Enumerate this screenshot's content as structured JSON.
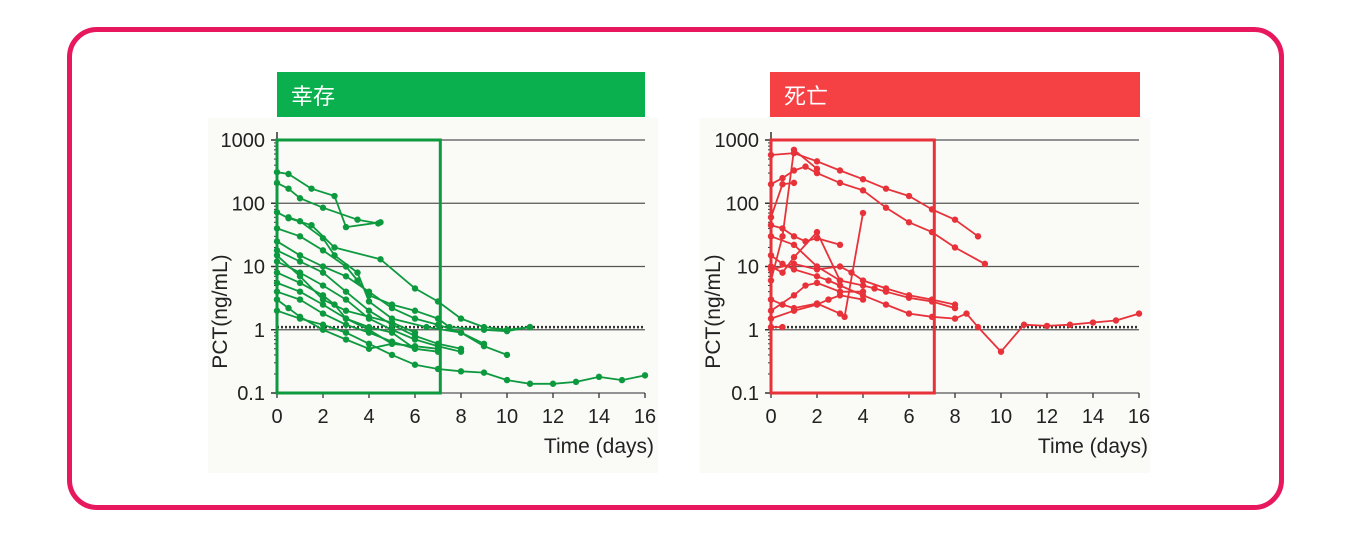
{
  "chart_data": [
    {
      "type": "line",
      "title": "幸存",
      "color": "#0d9a3f",
      "banner_color": "#0ab04d",
      "xlabel": "Time (days)",
      "ylabel": "PCT(ng/mL)",
      "xlim": [
        0,
        16
      ],
      "ylim": [
        0.1,
        1000
      ],
      "yscale": "log",
      "xticks": [
        0,
        2,
        4,
        6,
        8,
        10,
        12,
        14,
        16
      ],
      "yticks": [
        {
          "v": 0.1,
          "label": "0.1"
        },
        {
          "v": 1,
          "label": "1"
        },
        {
          "v": 10,
          "label": "10"
        },
        {
          "v": 100,
          "label": "100"
        },
        {
          "v": 1000,
          "label": "1000"
        }
      ],
      "reference_line": 1.1,
      "highlight_box": {
        "x": [
          0,
          7.1
        ],
        "y": [
          0.1,
          1000
        ]
      },
      "series": [
        {
          "x": [
            0,
            0.5,
            1.5,
            2.5,
            3,
            4.5
          ],
          "y": [
            310,
            290,
            170,
            130,
            42,
            50
          ]
        },
        {
          "x": [
            0,
            0.5,
            1,
            2,
            3.5,
            4.4
          ],
          "y": [
            210,
            170,
            120,
            85,
            55,
            48
          ]
        },
        {
          "x": [
            0,
            0.5,
            1.5,
            2.5,
            4.5,
            6,
            7,
            8,
            9,
            10,
            11
          ],
          "y": [
            72,
            58,
            45,
            20,
            13,
            4.5,
            2.8,
            1.5,
            1.1,
            1.0,
            1.1
          ]
        },
        {
          "x": [
            0.5,
            1,
            2,
            2.5,
            3.5,
            4,
            5,
            6.5,
            8,
            9
          ],
          "y": [
            60,
            52,
            28,
            15,
            8,
            2.8,
            1.5,
            1.1,
            0.9,
            0.6
          ]
        },
        {
          "x": [
            0,
            1,
            2,
            3,
            3.5,
            4,
            5,
            6,
            7,
            7.5,
            9,
            10,
            11
          ],
          "y": [
            40,
            30,
            18,
            10,
            6,
            3.5,
            2.5,
            2.0,
            1.5,
            1.1,
            1.0,
            0.95,
            1.1
          ]
        },
        {
          "x": [
            0,
            1,
            2,
            3,
            4,
            5,
            6,
            7,
            8,
            9,
            10
          ],
          "y": [
            25,
            15,
            10,
            7,
            4,
            2.2,
            1.5,
            1.2,
            0.9,
            0.55,
            0.4
          ]
        },
        {
          "x": [
            0,
            1,
            2,
            3,
            4,
            5,
            6,
            7,
            8
          ],
          "y": [
            18,
            12,
            8,
            4,
            2,
            1.2,
            0.8,
            0.6,
            0.5
          ]
        },
        {
          "x": [
            0,
            1,
            2,
            3,
            4,
            5,
            6,
            7,
            8
          ],
          "y": [
            12,
            8,
            5,
            3,
            1.5,
            1.0,
            0.7,
            0.55,
            0.45
          ]
        },
        {
          "x": [
            0,
            1,
            2,
            2.5,
            3,
            4,
            5,
            6,
            7
          ],
          "y": [
            8,
            5.5,
            3.5,
            2.5,
            1.5,
            1.0,
            0.6,
            0.55,
            0.5
          ]
        },
        {
          "x": [
            0,
            1,
            2,
            3,
            4,
            5,
            6,
            7
          ],
          "y": [
            5.5,
            4,
            2.5,
            1.5,
            1.1,
            0.9,
            0.5,
            0.45
          ]
        },
        {
          "x": [
            0,
            1,
            2,
            3,
            4,
            5,
            6
          ],
          "y": [
            4,
            3,
            1.8,
            1.2,
            0.9,
            0.65,
            0.5
          ]
        },
        {
          "x": [
            0,
            0.5,
            1,
            2,
            3,
            4,
            5
          ],
          "y": [
            3,
            2.2,
            1.6,
            1.0,
            0.7,
            0.5,
            0.6
          ]
        },
        {
          "x": [
            0,
            1,
            2,
            3,
            4,
            5,
            6,
            7,
            8,
            9,
            10,
            11,
            12,
            13,
            14,
            15,
            16
          ],
          "y": [
            2,
            1.5,
            1.2,
            0.9,
            0.6,
            0.4,
            0.28,
            0.24,
            0.22,
            0.21,
            0.16,
            0.14,
            0.14,
            0.15,
            0.18,
            0.16,
            0.19
          ]
        },
        {
          "x": [
            0,
            1,
            2,
            3,
            4,
            5,
            6
          ],
          "y": [
            15,
            7,
            3,
            2,
            1.6,
            1.3,
            0.9
          ]
        }
      ]
    },
    {
      "type": "line",
      "title": "死亡",
      "color": "#e8323a",
      "banner_color": "#f54044",
      "xlabel": "Time (days)",
      "ylabel": "PCT(ng/mL)",
      "xlim": [
        0,
        16
      ],
      "ylim": [
        0.1,
        1000
      ],
      "yscale": "log",
      "xticks": [
        0,
        2,
        4,
        6,
        8,
        10,
        12,
        14,
        16
      ],
      "yticks": [
        {
          "v": 0.1,
          "label": "0.1"
        },
        {
          "v": 1,
          "label": "1"
        },
        {
          "v": 10,
          "label": "10"
        },
        {
          "v": 100,
          "label": "100"
        },
        {
          "v": 1000,
          "label": "1000"
        }
      ],
      "reference_line": 1.1,
      "highlight_box": {
        "x": [
          0,
          7.1
        ],
        "y": [
          0.1,
          1000
        ]
      },
      "series": [
        {
          "x": [
            0,
            1,
            2,
            3,
            4,
            5,
            6,
            7,
            8,
            9
          ],
          "y": [
            580,
            620,
            460,
            330,
            240,
            170,
            130,
            80,
            55,
            30
          ]
        },
        {
          "x": [
            0,
            0.5,
            1,
            1.5,
            2,
            3,
            4,
            5,
            6,
            7,
            8,
            9.3
          ],
          "y": [
            200,
            250,
            330,
            380,
            300,
            210,
            160,
            85,
            50,
            35,
            20,
            11
          ]
        },
        {
          "x": [
            0,
            0.5,
            1
          ],
          "y": [
            60,
            200,
            210
          ]
        },
        {
          "x": [
            0,
            0.5,
            1,
            2
          ],
          "y": [
            6,
            30,
            700,
            350
          ]
        },
        {
          "x": [
            0,
            1,
            2,
            3,
            4,
            4.5,
            5,
            6,
            7,
            8
          ],
          "y": [
            30,
            22,
            10,
            6,
            5,
            4.5,
            4.0,
            3.2,
            2.8,
            2.2
          ]
        },
        {
          "x": [
            0,
            0.5,
            1,
            2,
            2.5,
            3,
            4,
            5,
            6,
            7,
            8,
            8.5,
            9,
            10,
            11,
            12,
            13,
            14,
            15,
            16
          ],
          "y": [
            15,
            11,
            9,
            7,
            6,
            5,
            3.5,
            2.5,
            1.8,
            1.6,
            1.5,
            1.8,
            1.1,
            0.45,
            1.2,
            1.15,
            1.2,
            1.3,
            1.4,
            1.8
          ]
        },
        {
          "x": [
            0,
            1,
            2,
            3,
            3.5,
            4,
            5,
            6,
            7,
            8
          ],
          "y": [
            9,
            11,
            9,
            10,
            8,
            6,
            4.5,
            3.5,
            3,
            2.5
          ]
        },
        {
          "x": [
            0,
            1,
            1.5,
            2,
            3,
            4
          ],
          "y": [
            2,
            3.5,
            5,
            5.5,
            4,
            4
          ]
        },
        {
          "x": [
            0,
            1,
            2,
            2.5,
            3,
            4
          ],
          "y": [
            1.5,
            2,
            2.5,
            3,
            3.5,
            3
          ]
        },
        {
          "x": [
            0,
            0.5,
            1,
            2,
            3,
            3.2,
            4
          ],
          "y": [
            3,
            2.5,
            2.2,
            2.6,
            1.8,
            1.6,
            70
          ]
        },
        {
          "x": [
            0,
            0.5,
            1,
            1.5,
            2,
            3
          ],
          "y": [
            45,
            40,
            30,
            25,
            28,
            22
          ]
        },
        {
          "x": [
            0,
            0.5,
            1,
            2,
            3
          ],
          "y": [
            10,
            8,
            14,
            35,
            6
          ]
        },
        {
          "x": [
            0,
            0.5
          ],
          "y": [
            1.1,
            1.1
          ]
        }
      ]
    }
  ]
}
